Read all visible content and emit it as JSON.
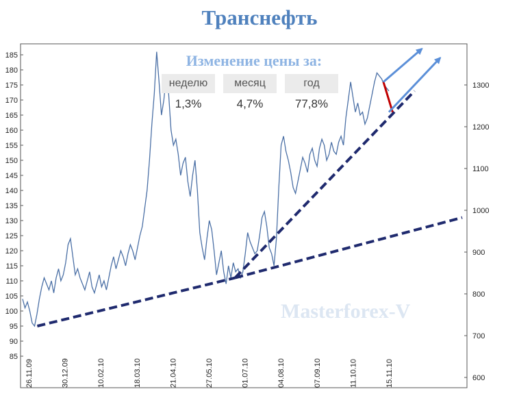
{
  "title": "Транснефть",
  "change_panel": {
    "heading": "Изменение цены за:",
    "columns": [
      {
        "label": "неделю",
        "value": "1,3%"
      },
      {
        "label": "месяц",
        "value": "4,7%"
      },
      {
        "label": "год",
        "value": "77,8%"
      }
    ]
  },
  "watermark": "Masterforex-V",
  "colors": {
    "price_line": "#4a6fa5",
    "trendline": "#1f2a6e",
    "arrow": "#5b8fd8",
    "red_segment": "#c00000",
    "title": "#4f81bd"
  },
  "chart_data": {
    "type": "line",
    "left_axis": {
      "ticks": [
        85,
        90,
        95,
        100,
        105,
        110,
        115,
        120,
        125,
        130,
        135,
        140,
        145,
        150,
        155,
        160,
        165,
        170,
        175,
        180,
        185
      ]
    },
    "right_axis": {
      "ticks": [
        600,
        700,
        800,
        900,
        1000,
        1100,
        1200,
        1300
      ]
    },
    "x_tick_labels": [
      "26.11.09",
      "30.12.09",
      "10.02.10",
      "18.03.10",
      "21.04.10",
      "27.05.10",
      "01.07.10",
      "04.08.10",
      "07.09.10",
      "11.10.10",
      "15.11.10"
    ],
    "grid": false,
    "series": [
      {
        "values": [
          104,
          101,
          103,
          100,
          96,
          95,
          99,
          104,
          108,
          111,
          109,
          107,
          110,
          106,
          111,
          114,
          110,
          112,
          116,
          122,
          124,
          118,
          112,
          114,
          111,
          109,
          107,
          110,
          113,
          108,
          106,
          109,
          112,
          108,
          110,
          107,
          111,
          115,
          118,
          114,
          117,
          120,
          118,
          115,
          119,
          122,
          120,
          117,
          121,
          125,
          128,
          134,
          140,
          150,
          162,
          172,
          186,
          176,
          165,
          170,
          178,
          172,
          160,
          155,
          157,
          152,
          145,
          149,
          151,
          143,
          138,
          145,
          150,
          140,
          126,
          121,
          117,
          124,
          130,
          127,
          120,
          112,
          116,
          120,
          113,
          109,
          115,
          111,
          116,
          113,
          114,
          111,
          113,
          119,
          126,
          123,
          121,
          119,
          120,
          125,
          131,
          133,
          128,
          121,
          119,
          115,
          124,
          141,
          155,
          158,
          153,
          150,
          146,
          141,
          139,
          143,
          147,
          151,
          149,
          146,
          152,
          154,
          150,
          148,
          154,
          157,
          155,
          150,
          152,
          156,
          153,
          152,
          156,
          158,
          155,
          164,
          170,
          176,
          171,
          166,
          169,
          165,
          166,
          162,
          164,
          168,
          172,
          176,
          179,
          178,
          177,
          175,
          174,
          173
        ]
      }
    ],
    "annotations": [
      {
        "type": "trendline",
        "style": "dashed",
        "from": {
          "x": 0.04,
          "y": 95
        },
        "to": {
          "x": 0.58,
          "y": 111
        }
      },
      {
        "type": "trendline",
        "style": "dashed",
        "from": {
          "x": 0.58,
          "y": 111
        },
        "to": {
          "x": 1.07,
          "y": 173
        }
      },
      {
        "type": "trendline",
        "style": "dashed",
        "from": {
          "x": 0.58,
          "y": 111
        },
        "to": {
          "x": 1.2,
          "y": 131
        }
      },
      {
        "type": "segment",
        "color": "red",
        "from": {
          "x": 0.985,
          "y": 176
        },
        "to": {
          "x": 1.01,
          "y": 166
        }
      },
      {
        "type": "arrow",
        "from": {
          "x": 0.985,
          "y": 176
        },
        "to": {
          "x": 1.09,
          "y": 187
        }
      },
      {
        "type": "arrow",
        "from": {
          "x": 1.0,
          "y": 166
        },
        "to": {
          "x": 1.14,
          "y": 184
        }
      }
    ]
  }
}
